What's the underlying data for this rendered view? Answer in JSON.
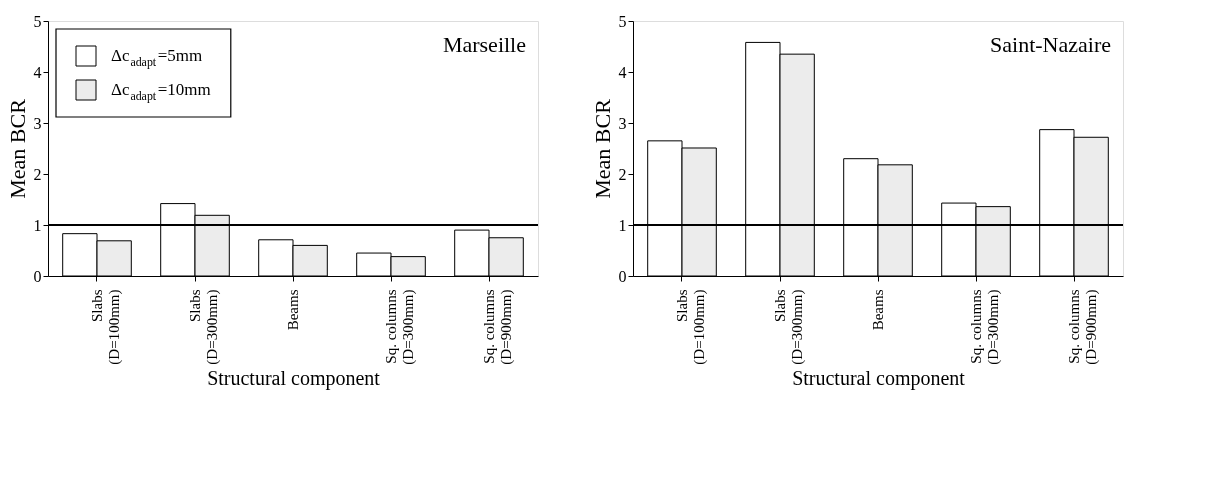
{
  "chart_data": [
    {
      "type": "bar",
      "annotations": [
        "Marseille"
      ],
      "xlabel": "Structural component",
      "ylabel": "Mean BCR",
      "categories": [
        "Slabs\n(D=100mm)",
        "Slabs\n(D=300mm)",
        "Beams",
        "Sq. columns\n(D=300mm)",
        "Sq. columns\n(D=900mm)"
      ],
      "series": [
        {
          "name": "Δc$_{adapt}$=5mm",
          "color": "#ffffff",
          "values": [
            0.83,
            1.42,
            0.71,
            0.45,
            0.9
          ]
        },
        {
          "name": "Δc$_{adapt}$=10mm",
          "color": "#ececec",
          "values": [
            0.69,
            1.19,
            0.6,
            0.38,
            0.75
          ]
        }
      ],
      "ylim": [
        0,
        5
      ],
      "yticks": [
        0,
        1,
        2,
        3,
        4,
        5
      ],
      "ref_lines": [
        {
          "axis": "y",
          "value": 1
        }
      ],
      "legend": "top left",
      "grid": false
    },
    {
      "type": "bar",
      "annotations": [
        "Saint-Nazaire"
      ],
      "xlabel": "Structural component",
      "ylabel": "Mean BCR",
      "categories": [
        "Slabs\n(D=100mm)",
        "Slabs\n(D=300mm)",
        "Beams",
        "Sq. columns\n(D=300mm)",
        "Sq. columns\n(D=900mm)"
      ],
      "series": [
        {
          "color": "#ffffff",
          "values": [
            2.65,
            4.58,
            2.3,
            1.43,
            2.87
          ]
        },
        {
          "color": "#ececec",
          "values": [
            2.51,
            4.35,
            2.18,
            1.36,
            2.72
          ]
        }
      ],
      "ylim": [
        0,
        5
      ],
      "yticks": [
        0,
        1,
        2,
        3,
        4,
        5
      ],
      "ref_lines": [
        {
          "axis": "y",
          "value": 1
        }
      ],
      "legend": false,
      "grid": false
    }
  ]
}
